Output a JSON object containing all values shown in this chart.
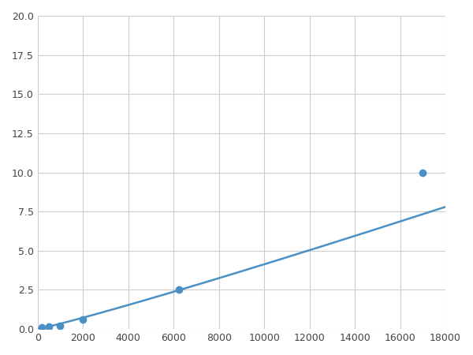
{
  "x_points": [
    200,
    500,
    1000,
    2000,
    6250,
    17000
  ],
  "y_points": [
    0.1,
    0.15,
    0.2,
    0.6,
    2.5,
    10.0
  ],
  "line_color": "#4a90c4",
  "marker_color": "#4a90c4",
  "marker_size": 6,
  "line_width": 1.8,
  "xlim": [
    0,
    18000
  ],
  "ylim": [
    0,
    20
  ],
  "xticks": [
    0,
    2000,
    4000,
    6000,
    8000,
    10000,
    12000,
    14000,
    16000,
    18000
  ],
  "yticks": [
    0.0,
    2.5,
    5.0,
    7.5,
    10.0,
    12.5,
    15.0,
    17.5,
    20.0
  ],
  "grid_color": "#cccccc",
  "background_color": "#ffffff",
  "figure_width": 6.0,
  "figure_height": 4.5,
  "dpi": 100
}
